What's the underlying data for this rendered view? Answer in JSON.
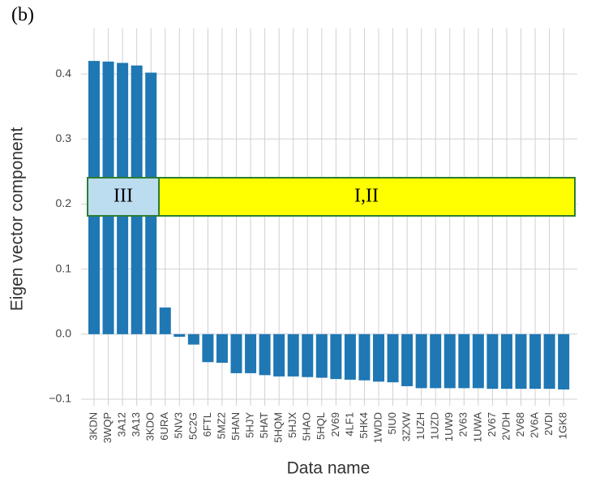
{
  "panel_label": "(b)",
  "chart_data": {
    "type": "bar",
    "y_label": "Eigen vector component",
    "x_label": "Data name",
    "categories": [
      "3KDN",
      "3WQP",
      "3A12",
      "3A13",
      "3KDO",
      "6URA",
      "5NV3",
      "5C2G",
      "6FTL",
      "5MZ2",
      "5HAN",
      "5HJY",
      "5HAT",
      "5HQM",
      "5HJX",
      "5HAO",
      "5HQL",
      "2V69",
      "4LF1",
      "5HK4",
      "1WDD",
      "5IU0",
      "3ZXW",
      "1UZH",
      "1UZD",
      "1UW9",
      "2V63",
      "1UWA",
      "2V67",
      "2VDH",
      "2V68",
      "2V6A",
      "2VDI",
      "1GK8"
    ],
    "values": [
      0.42,
      0.419,
      0.417,
      0.413,
      0.402,
      0.041,
      -0.004,
      -0.016,
      -0.043,
      -0.044,
      -0.06,
      -0.06,
      -0.063,
      -0.065,
      -0.065,
      -0.066,
      -0.067,
      -0.069,
      -0.07,
      -0.071,
      -0.073,
      -0.074,
      -0.08,
      -0.083,
      -0.083,
      -0.083,
      -0.083,
      -0.083,
      -0.084,
      -0.084,
      -0.084,
      -0.084,
      -0.084,
      -0.085
    ],
    "color": "#1f77b4",
    "ylim": [
      -0.11,
      0.47
    ],
    "yticks": [
      {
        "value": -0.1,
        "label": "−0.1"
      },
      {
        "value": 0,
        "label": "0.0"
      },
      0.1,
      0.2,
      0.3,
      0.4
    ],
    "grid": true,
    "annotations": [
      "III",
      "I,II"
    ]
  }
}
